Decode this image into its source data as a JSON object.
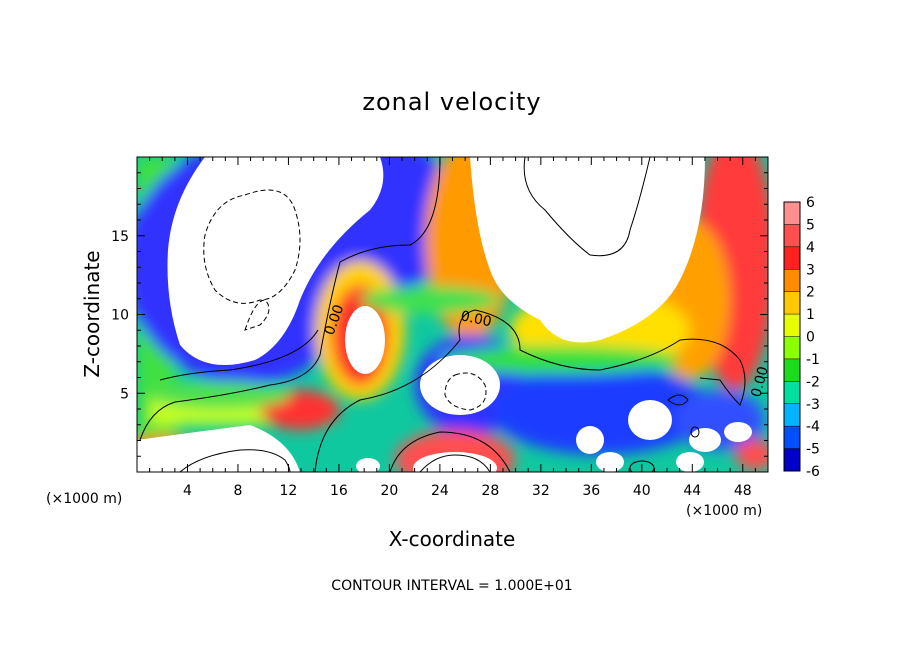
{
  "chart_data": {
    "type": "heatmap",
    "title": "zonal velocity",
    "xlabel": "X-coordinate",
    "ylabel": "Z-coordinate",
    "x_scale_label": "(×1000 m)",
    "xlim": [
      0,
      50
    ],
    "ylim": [
      0,
      20
    ],
    "x_ticks": [
      4,
      8,
      12,
      16,
      20,
      24,
      28,
      32,
      36,
      40,
      44,
      48
    ],
    "y_ticks": [
      5,
      10,
      15
    ],
    "colorbar": {
      "range": [
        -6,
        6
      ],
      "ticks": [
        6,
        5,
        4,
        3,
        2,
        1,
        0,
        -1,
        -2,
        -3,
        -4,
        -5,
        -6
      ],
      "colors": [
        "#ff9090",
        "#ff5050",
        "#ff2020",
        "#ff8c00",
        "#ffc800",
        "#e6ff00",
        "#8cff00",
        "#1adc1a",
        "#00e0a0",
        "#00b4ff",
        "#0050ff",
        "#0000c8",
        "#8c00c8"
      ]
    },
    "contour_labels": [
      "0.00",
      "0.00",
      "0.00"
    ],
    "note": "CONTOUR INTERVAL = 1.000E+01"
  }
}
